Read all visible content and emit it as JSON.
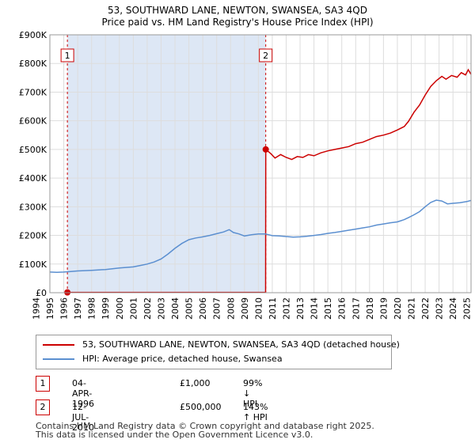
{
  "chart_data": {
    "type": "line",
    "title": "53, SOUTHWARD LANE, NEWTON, SWANSEA, SA3 4QD",
    "subtitle": "Price paid vs. HM Land Registry's House Price Index (HPI)",
    "xlim": [
      1995,
      2025.3
    ],
    "ylim": [
      0,
      900000
    ],
    "x_ticks": [
      1994,
      1995,
      1996,
      1997,
      1998,
      1999,
      2000,
      2001,
      2002,
      2003,
      2004,
      2005,
      2006,
      2007,
      2008,
      2009,
      2010,
      2011,
      2012,
      2013,
      2014,
      2015,
      2016,
      2017,
      2018,
      2019,
      2020,
      2021,
      2022,
      2023,
      2024,
      2025
    ],
    "y_ticks": [
      {
        "value": 0,
        "label": "£0"
      },
      {
        "value": 100000,
        "label": "£100K"
      },
      {
        "value": 200000,
        "label": "£200K"
      },
      {
        "value": 300000,
        "label": "£300K"
      },
      {
        "value": 400000,
        "label": "£400K"
      },
      {
        "value": 500000,
        "label": "£500K"
      },
      {
        "value": 600000,
        "label": "£600K"
      },
      {
        "value": 700000,
        "label": "£700K"
      },
      {
        "value": 800000,
        "label": "£800K"
      },
      {
        "value": 900000,
        "label": "£900K"
      }
    ],
    "grid": true,
    "series": [
      {
        "name": "53, SOUTHWARD LANE, NEWTON, SWANSEA, SA3 4QD (detached house)",
        "color": "#cc0000",
        "points": [
          [
            1996.26,
            1000
          ],
          [
            2010.52,
            1000
          ],
          [
            2010.53,
            500000
          ],
          [
            2010.9,
            485000
          ],
          [
            2011.2,
            470000
          ],
          [
            2011.6,
            482000
          ],
          [
            2012,
            472000
          ],
          [
            2012.4,
            465000
          ],
          [
            2012.8,
            475000
          ],
          [
            2013.2,
            472000
          ],
          [
            2013.6,
            482000
          ],
          [
            2014,
            478000
          ],
          [
            2014.5,
            488000
          ],
          [
            2015,
            495000
          ],
          [
            2015.5,
            500000
          ],
          [
            2016,
            505000
          ],
          [
            2016.5,
            510000
          ],
          [
            2017,
            520000
          ],
          [
            2017.5,
            525000
          ],
          [
            2018,
            535000
          ],
          [
            2018.5,
            545000
          ],
          [
            2019,
            550000
          ],
          [
            2019.5,
            557000
          ],
          [
            2020,
            568000
          ],
          [
            2020.5,
            580000
          ],
          [
            2020.8,
            598000
          ],
          [
            2021.2,
            630000
          ],
          [
            2021.6,
            655000
          ],
          [
            2022,
            690000
          ],
          [
            2022.4,
            720000
          ],
          [
            2022.8,
            740000
          ],
          [
            2023.2,
            755000
          ],
          [
            2023.5,
            745000
          ],
          [
            2023.9,
            758000
          ],
          [
            2024.3,
            752000
          ],
          [
            2024.6,
            768000
          ],
          [
            2024.9,
            760000
          ],
          [
            2025.1,
            778000
          ],
          [
            2025.3,
            762000
          ]
        ]
      },
      {
        "name": "HPI: Average price, detached house, Swansea",
        "color": "#5b8fd0",
        "points": [
          [
            1995,
            72000
          ],
          [
            1995.5,
            71000
          ],
          [
            1996,
            72000
          ],
          [
            1996.5,
            74000
          ],
          [
            1997,
            76000
          ],
          [
            1998,
            78000
          ],
          [
            1999,
            81000
          ],
          [
            2000,
            86000
          ],
          [
            2001,
            90000
          ],
          [
            2001.5,
            95000
          ],
          [
            2002,
            100000
          ],
          [
            2002.5,
            107000
          ],
          [
            2003,
            118000
          ],
          [
            2003.5,
            135000
          ],
          [
            2004,
            155000
          ],
          [
            2004.5,
            172000
          ],
          [
            2005,
            185000
          ],
          [
            2005.5,
            191000
          ],
          [
            2006,
            195000
          ],
          [
            2006.5,
            200000
          ],
          [
            2007,
            206000
          ],
          [
            2007.5,
            212000
          ],
          [
            2007.9,
            220000
          ],
          [
            2008.2,
            210000
          ],
          [
            2008.6,
            205000
          ],
          [
            2009,
            198000
          ],
          [
            2009.5,
            202000
          ],
          [
            2010,
            205000
          ],
          [
            2010.5,
            205000
          ],
          [
            2011,
            199000
          ],
          [
            2011.5,
            198000
          ],
          [
            2012,
            196000
          ],
          [
            2012.5,
            194000
          ],
          [
            2013,
            195000
          ],
          [
            2013.5,
            197000
          ],
          [
            2014,
            200000
          ],
          [
            2014.5,
            203000
          ],
          [
            2015,
            207000
          ],
          [
            2015.5,
            210000
          ],
          [
            2016,
            214000
          ],
          [
            2016.5,
            218000
          ],
          [
            2017,
            222000
          ],
          [
            2017.5,
            226000
          ],
          [
            2018,
            230000
          ],
          [
            2018.5,
            236000
          ],
          [
            2019,
            240000
          ],
          [
            2019.5,
            244000
          ],
          [
            2020,
            247000
          ],
          [
            2020.5,
            255000
          ],
          [
            2020.8,
            262000
          ],
          [
            2021.2,
            272000
          ],
          [
            2021.6,
            283000
          ],
          [
            2022,
            300000
          ],
          [
            2022.4,
            315000
          ],
          [
            2022.8,
            323000
          ],
          [
            2023.2,
            320000
          ],
          [
            2023.6,
            310000
          ],
          [
            2024,
            312000
          ],
          [
            2024.5,
            314000
          ],
          [
            2025,
            318000
          ],
          [
            2025.3,
            322000
          ]
        ]
      }
    ],
    "sales": [
      {
        "label": "1",
        "x": 1996.26,
        "y": 1000
      },
      {
        "label": "2",
        "x": 2010.53,
        "y": 500000
      }
    ]
  },
  "legend": {
    "property_label": "53, SOUTHWARD LANE, NEWTON, SWANSEA, SA3 4QD (detached house)",
    "hpi_label": "HPI: Average price, detached house, Swansea"
  },
  "transactions": [
    {
      "num": "1",
      "date": "04-APR-1996",
      "price": "£1,000",
      "hpi": "99% ↓ HPI"
    },
    {
      "num": "2",
      "date": "12-JUL-2010",
      "price": "£500,000",
      "hpi": "143% ↑ HPI"
    }
  ],
  "footer": {
    "line1": "Contains HM Land Registry data © Crown copyright and database right 2025.",
    "line2": "This data is licensed under the Open Government Licence v3.0."
  },
  "colors": {
    "property": "#cc0000",
    "hpi": "#5b8fd0",
    "highlight": "#dde7f5",
    "grid": "#dddddd"
  }
}
